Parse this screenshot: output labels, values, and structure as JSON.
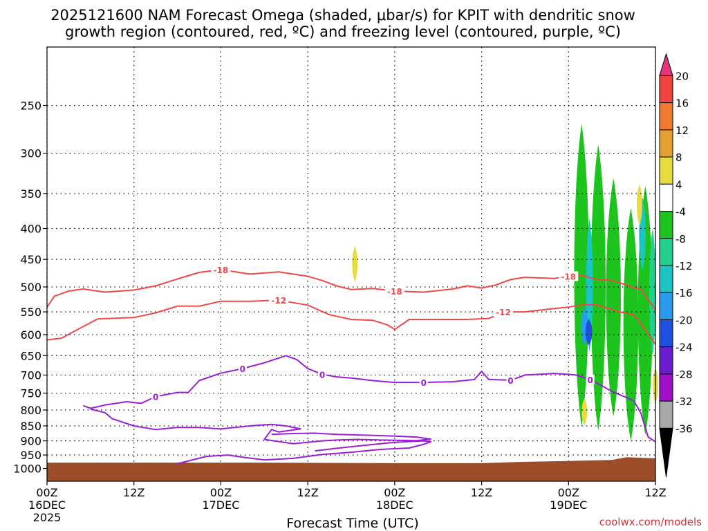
{
  "title_line1": "2025121600 NAM Forecast Omega (shaded, μbar/s) for KPIT with dendritic snow",
  "title_line2": "growth region (contoured, red, ºC) and freezing level (contoured, purple, ºC)",
  "x_label": "Forecast Time (UTC)",
  "credit": "coolwx.com/models",
  "chart_data": {
    "type": "time-height cross section",
    "x_ticks": [
      {
        "hour": 0,
        "lines": [
          "00Z",
          "16DEC",
          "2025"
        ]
      },
      {
        "hour": 12,
        "lines": [
          "12Z"
        ]
      },
      {
        "hour": 24,
        "lines": [
          "00Z",
          "17DEC"
        ]
      },
      {
        "hour": 36,
        "lines": [
          "12Z"
        ]
      },
      {
        "hour": 48,
        "lines": [
          "00Z",
          "18DEC"
        ]
      },
      {
        "hour": 60,
        "lines": [
          "12Z"
        ]
      },
      {
        "hour": 72,
        "lines": [
          "00Z",
          "19DEC"
        ]
      },
      {
        "hour": 84,
        "lines": [
          "12Z"
        ]
      }
    ],
    "x_range_hours": [
      0,
      84
    ],
    "y_ticks_hpa": [
      250,
      300,
      350,
      400,
      450,
      500,
      550,
      600,
      650,
      700,
      750,
      800,
      850,
      900,
      950,
      1000
    ],
    "y_range_hpa": [
      200,
      1050
    ],
    "grid": "dotted",
    "colorbar": {
      "ticks": [
        "20",
        "16",
        "12",
        "8",
        "4",
        "-4",
        "-8",
        "-12",
        "-16",
        "-20",
        "-24",
        "-28",
        "-32",
        "-36"
      ],
      "colors": [
        "#e8347a",
        "#ee4540",
        "#f07a30",
        "#e6a030",
        "#e6dc40",
        "#ffffff",
        "#1ec41e",
        "#23cf8c",
        "#1cc4c4",
        "#289bee",
        "#2050e0",
        "#6a1ed0",
        "#a010c8",
        "#a8a8a8",
        "#000000"
      ]
    },
    "series": [
      {
        "contour": -18,
        "color": "#f04848",
        "labels": [
          "-18",
          "-18",
          "-18"
        ],
        "points": [
          [
            0,
            540
          ],
          [
            1,
            518
          ],
          [
            3,
            508
          ],
          [
            5,
            504
          ],
          [
            8,
            510
          ],
          [
            12,
            506
          ],
          [
            15,
            498
          ],
          [
            18,
            485
          ],
          [
            21,
            473
          ],
          [
            24,
            468
          ],
          [
            28,
            476
          ],
          [
            32,
            472
          ],
          [
            36,
            480
          ],
          [
            38,
            488
          ],
          [
            40,
            498
          ],
          [
            42,
            505
          ],
          [
            45,
            503
          ],
          [
            48,
            508
          ],
          [
            52,
            510
          ],
          [
            56,
            504
          ],
          [
            58,
            498
          ],
          [
            60,
            502
          ],
          [
            62,
            496
          ],
          [
            64,
            486
          ],
          [
            66,
            482
          ],
          [
            70,
            484
          ],
          [
            72,
            480
          ],
          [
            74,
            479
          ],
          [
            76,
            486
          ],
          [
            78,
            488
          ],
          [
            80,
            496
          ],
          [
            81,
            502
          ],
          [
            82,
            504
          ],
          [
            83,
            525
          ],
          [
            84,
            545
          ]
        ]
      },
      {
        "contour": -12,
        "color": "#f04848",
        "labels": [
          "-12",
          "-12"
        ],
        "points": [
          [
            0,
            612
          ],
          [
            2,
            608
          ],
          [
            4,
            590
          ],
          [
            7,
            565
          ],
          [
            12,
            562
          ],
          [
            15,
            552
          ],
          [
            18,
            538
          ],
          [
            21,
            538
          ],
          [
            24,
            528
          ],
          [
            28,
            528
          ],
          [
            32,
            526
          ],
          [
            36,
            536
          ],
          [
            39,
            556
          ],
          [
            42,
            566
          ],
          [
            45,
            568
          ],
          [
            47,
            578
          ],
          [
            48,
            588
          ],
          [
            50,
            566
          ],
          [
            54,
            566
          ],
          [
            58,
            566
          ],
          [
            61,
            564
          ],
          [
            63,
            550
          ],
          [
            66,
            550
          ],
          [
            70,
            543
          ],
          [
            72,
            540
          ],
          [
            74,
            535
          ],
          [
            76,
            536
          ],
          [
            79,
            550
          ],
          [
            81,
            556
          ],
          [
            82,
            575
          ],
          [
            83,
            598
          ],
          [
            84,
            622
          ]
        ]
      },
      {
        "contour": 0,
        "color": "#9b1ed6",
        "labels": [
          "0",
          "0",
          "0",
          "0",
          "0",
          "0"
        ],
        "points": [
          [
            5,
            787
          ],
          [
            6,
            795
          ],
          [
            8,
            785
          ],
          [
            11,
            775
          ],
          [
            13,
            780
          ],
          [
            15,
            760
          ],
          [
            18,
            748
          ],
          [
            19.5,
            748
          ],
          [
            21,
            715
          ],
          [
            24,
            695
          ],
          [
            27,
            683
          ],
          [
            30,
            668
          ],
          [
            33,
            650
          ],
          [
            34.5,
            660
          ],
          [
            36,
            683
          ],
          [
            38,
            698
          ],
          [
            40,
            705
          ],
          [
            42,
            708
          ],
          [
            45,
            715
          ],
          [
            48,
            720
          ],
          [
            52,
            720
          ],
          [
            56,
            718
          ],
          [
            59,
            712
          ],
          [
            60,
            690
          ],
          [
            61,
            712
          ],
          [
            64,
            714
          ],
          [
            66,
            700
          ],
          [
            70,
            696
          ],
          [
            72,
            698
          ],
          [
            73,
            700
          ],
          [
            75,
            712
          ],
          [
            78,
            745
          ],
          [
            81,
            772
          ],
          [
            82,
            810
          ],
          [
            83,
            887
          ],
          [
            84,
            903
          ]
        ]
      },
      {
        "contour": 0,
        "color": "#9b1ed6",
        "labels": [],
        "points": [
          [
            6,
            797
          ],
          [
            8,
            808
          ],
          [
            9,
            827
          ],
          [
            12,
            850
          ],
          [
            15,
            862
          ],
          [
            18,
            855
          ],
          [
            21,
            855
          ],
          [
            24,
            860
          ],
          [
            28,
            850
          ],
          [
            31,
            845
          ],
          [
            33,
            850
          ],
          [
            35,
            860
          ],
          [
            32,
            870
          ],
          [
            31,
            862
          ],
          [
            30,
            895
          ],
          [
            34,
            910
          ],
          [
            38,
            900
          ],
          [
            40,
            897
          ],
          [
            43,
            895
          ],
          [
            46,
            897
          ],
          [
            51,
            899
          ],
          [
            53,
            894
          ],
          [
            51,
            887
          ],
          [
            48,
            884
          ],
          [
            46,
            882
          ],
          [
            43,
            880
          ],
          [
            40,
            878
          ],
          [
            37,
            874
          ],
          [
            34,
            875
          ],
          [
            31,
            878
          ]
        ]
      },
      {
        "contour": 0,
        "color": "#9b1ed6",
        "labels": [],
        "points": [
          [
            18,
            982
          ],
          [
            22,
            955
          ],
          [
            25,
            950
          ],
          [
            27,
            958
          ],
          [
            30,
            968
          ],
          [
            34,
            962
          ],
          [
            38,
            948
          ],
          [
            42,
            940
          ],
          [
            46,
            930
          ],
          [
            50,
            925
          ],
          [
            52,
            912
          ],
          [
            53,
            903
          ],
          [
            52,
            900
          ],
          [
            48,
            905
          ],
          [
            44,
            915
          ],
          [
            40,
            926
          ],
          [
            37,
            935
          ]
        ]
      }
    ],
    "omega_cells": [
      {
        "hour": 42.5,
        "hpa_top": 428,
        "hpa_bottom": 490,
        "value": 6
      },
      {
        "hour": 73.8,
        "hpa_top": 268,
        "hpa_bottom": 852,
        "value": -6
      },
      {
        "hour": 76.1,
        "hpa_top": 290,
        "hpa_bottom": 865,
        "value": -6
      },
      {
        "hour": 78.2,
        "hpa_top": 330,
        "hpa_bottom": 820,
        "value": -6
      },
      {
        "hour": 80.6,
        "hpa_top": 370,
        "hpa_bottom": 900,
        "value": -6
      },
      {
        "hour": 82.6,
        "hpa_top": 340,
        "hpa_bottom": 880,
        "value": -6
      },
      {
        "hour": 74.9,
        "hpa_top": 385,
        "hpa_bottom": 640,
        "value": -14
      },
      {
        "hour": 74.2,
        "hpa_top": 540,
        "hpa_bottom": 625,
        "value": -18
      },
      {
        "hour": 74.8,
        "hpa_top": 565,
        "hpa_bottom": 625,
        "value": -22
      },
      {
        "hour": 82.2,
        "hpa_top": 355,
        "hpa_bottom": 470,
        "value": -14
      },
      {
        "hour": 83.6,
        "hpa_top": 400,
        "hpa_bottom": 650,
        "value": -10
      },
      {
        "hour": 81.8,
        "hpa_top": 338,
        "hpa_bottom": 395,
        "value": 6
      },
      {
        "hour": 74.2,
        "hpa_top": 765,
        "hpa_bottom": 848,
        "value": 6
      },
      {
        "hour": 84,
        "hpa_top": 680,
        "hpa_bottom": 780,
        "value": 6
      }
    ],
    "terrain": {
      "color": "#9c4e2a",
      "points": [
        [
          0,
          978
        ],
        [
          30,
          978
        ],
        [
          48,
          980
        ],
        [
          60,
          980
        ],
        [
          66,
          975
        ],
        [
          72,
          972
        ],
        [
          78,
          968
        ],
        [
          80,
          958
        ],
        [
          84,
          962
        ]
      ]
    }
  }
}
